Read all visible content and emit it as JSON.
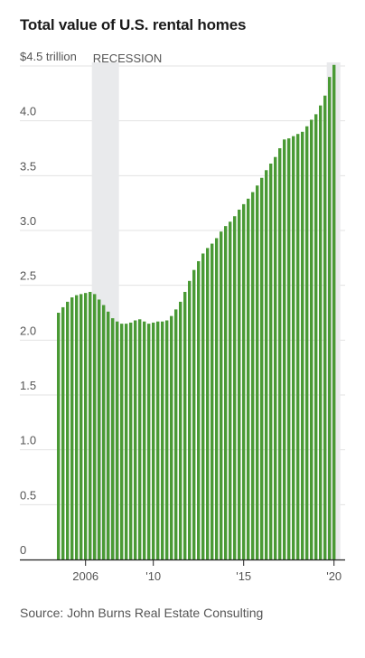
{
  "chart_data": {
    "type": "bar",
    "title": "Total value of U.S. rental homes",
    "source": "Source: John Burns Real Estate Consulting",
    "y_unit_label": "$4.5 trillion",
    "ylim": [
      0,
      4.5
    ],
    "y_ticks": [
      {
        "value": 0,
        "label": "0"
      },
      {
        "value": 0.5,
        "label": "0.5"
      },
      {
        "value": 1.0,
        "label": "1.0"
      },
      {
        "value": 1.5,
        "label": "1.5"
      },
      {
        "value": 2.0,
        "label": "2.0"
      },
      {
        "value": 2.5,
        "label": "2.5"
      },
      {
        "value": 3.0,
        "label": "3.0"
      },
      {
        "value": 3.5,
        "label": "3.5"
      },
      {
        "value": 4.0,
        "label": "4.0"
      },
      {
        "value": 4.5,
        "label": "$4.5 trillion"
      }
    ],
    "x_ticks": [
      {
        "index": 6,
        "label": "2006"
      },
      {
        "index": 21,
        "label": "'10"
      },
      {
        "index": 41,
        "label": "'15"
      },
      {
        "index": 61,
        "label": "'20"
      }
    ],
    "shaded_regions": [
      {
        "label": "RECESSION",
        "start_index": 8,
        "end_index": 14
      },
      {
        "label": "",
        "start_index": 60,
        "end_index": 63
      }
    ],
    "grid": true,
    "bar_color": "#4a9a35",
    "shade_color": "#e9eaec",
    "values": [
      2.25,
      2.3,
      2.35,
      2.39,
      2.41,
      2.42,
      2.43,
      2.44,
      2.42,
      2.37,
      2.32,
      2.26,
      2.2,
      2.17,
      2.15,
      2.15,
      2.16,
      2.18,
      2.19,
      2.17,
      2.15,
      2.16,
      2.17,
      2.17,
      2.18,
      2.22,
      2.28,
      2.35,
      2.44,
      2.54,
      2.64,
      2.72,
      2.79,
      2.84,
      2.88,
      2.93,
      2.99,
      3.04,
      3.08,
      3.13,
      3.19,
      3.24,
      3.29,
      3.35,
      3.41,
      3.48,
      3.55,
      3.61,
      3.67,
      3.75,
      3.83,
      3.84,
      3.86,
      3.88,
      3.9,
      3.95,
      4.01,
      4.06,
      4.14,
      4.23,
      4.4,
      4.51
    ]
  }
}
